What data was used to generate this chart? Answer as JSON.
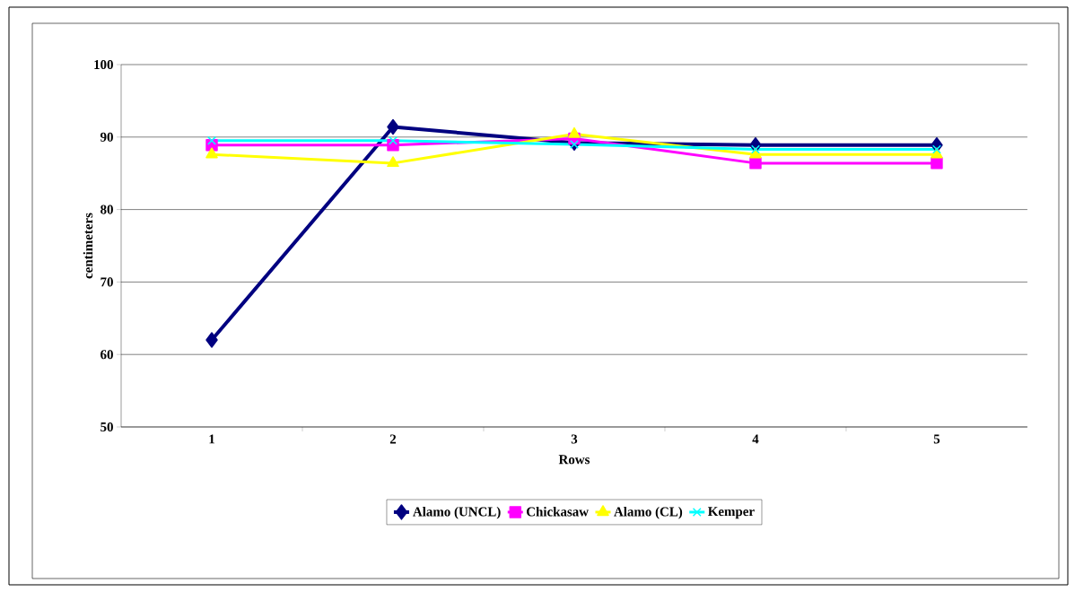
{
  "chart_data": {
    "type": "line",
    "xlabel": "Rows",
    "ylabel": "centimeters",
    "categories": [
      "1",
      "2",
      "3",
      "4",
      "5"
    ],
    "ylim": [
      50,
      100
    ],
    "yticks": [
      50,
      60,
      70,
      80,
      90,
      100
    ],
    "grid": "y",
    "legend": "bottom",
    "series": [
      {
        "name": "Alamo (UNCL)",
        "color": "#000080",
        "marker": "diamond",
        "values": [
          62,
          91.4,
          89.2,
          88.9,
          88.9
        ]
      },
      {
        "name": "Chickasaw",
        "color": "#ff00ff",
        "marker": "square",
        "values": [
          88.9,
          88.9,
          89.8,
          86.4,
          86.4
        ]
      },
      {
        "name": "Alamo (CL)",
        "color": "#ffff00",
        "marker": "triangle",
        "values": [
          87.6,
          86.4,
          90.4,
          87.6,
          87.6
        ]
      },
      {
        "name": "Kemper",
        "color": "#00ffff",
        "marker": "cross",
        "values": [
          89.5,
          89.5,
          89.0,
          88.3,
          88.3
        ]
      }
    ]
  }
}
